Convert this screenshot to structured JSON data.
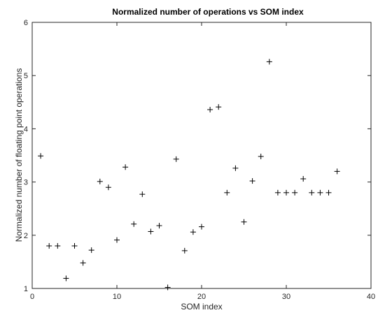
{
  "chart_data": {
    "type": "scatter",
    "title": "Normalized number of operations vs SOM index",
    "xlabel": "SOM index",
    "ylabel": "Normalized number of floating point operations",
    "xlim": [
      0,
      40
    ],
    "ylim": [
      1,
      6
    ],
    "xticks": [
      0,
      10,
      20,
      30,
      40
    ],
    "yticks": [
      1,
      2,
      3,
      4,
      5,
      6
    ],
    "grid": false,
    "marker": "plus",
    "marker_color": "#000000",
    "x": [
      1,
      2,
      3,
      4,
      5,
      6,
      7,
      8,
      9,
      10,
      11,
      12,
      13,
      14,
      15,
      16,
      17,
      18,
      19,
      20,
      21,
      22,
      23,
      24,
      25,
      26,
      27,
      28,
      29,
      30,
      31,
      32,
      33,
      34,
      35,
      36
    ],
    "y": [
      3.49,
      1.8,
      1.8,
      1.19,
      1.8,
      1.48,
      1.72,
      3.01,
      2.9,
      1.91,
      3.28,
      2.21,
      2.77,
      2.07,
      2.18,
      1.02,
      3.43,
      1.71,
      2.06,
      2.16,
      4.36,
      4.41,
      2.8,
      3.26,
      2.25,
      3.02,
      3.48,
      5.26,
      2.8,
      2.8,
      2.8,
      3.06,
      2.8,
      2.8,
      2.8,
      3.2
    ]
  }
}
